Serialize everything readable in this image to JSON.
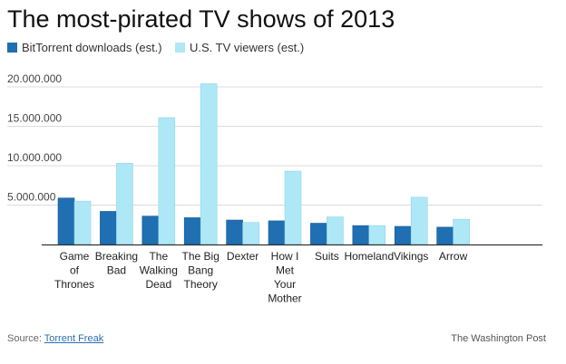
{
  "chart_data": {
    "type": "bar",
    "title": "The most-pirated TV shows of 2013",
    "xlabel": "",
    "ylabel": "",
    "ylim": [
      0,
      20000000
    ],
    "yticks": [
      {
        "value": 5000000,
        "label": "5.000.000"
      },
      {
        "value": 10000000,
        "label": "10.000.000"
      },
      {
        "value": 15000000,
        "label": "15.000.000"
      },
      {
        "value": 20000000,
        "label": "20.000.000"
      }
    ],
    "categories": [
      [
        "Game",
        "of",
        "Thrones"
      ],
      [
        "Breaking",
        "Bad"
      ],
      [
        "The",
        "Walking",
        "Dead"
      ],
      [
        "The Big",
        "Bang",
        "Theory"
      ],
      [
        "Dexter"
      ],
      [
        "How I",
        "Met",
        "Your",
        "Mother"
      ],
      [
        "Suits"
      ],
      [
        "Homeland"
      ],
      [
        "Vikings"
      ],
      [
        "Arrow"
      ]
    ],
    "series": [
      {
        "name": "BitTorrent downloads (est.)",
        "color": "#1f6fb2",
        "values": [
          5900000,
          4200000,
          3600000,
          3400000,
          3100000,
          3000000,
          2700000,
          2400000,
          2300000,
          2200000
        ]
      },
      {
        "name": "U.S. TV viewers (est.)",
        "color": "#aee8f7",
        "values": [
          5500000,
          10300000,
          16100000,
          20400000,
          2800000,
          9300000,
          3500000,
          2400000,
          6000000,
          3200000
        ]
      }
    ],
    "legend": "top-left",
    "grid": true
  },
  "footer": {
    "source_label": "Source:",
    "source_link": "Torrent Freak",
    "credit": "The Washington Post"
  }
}
